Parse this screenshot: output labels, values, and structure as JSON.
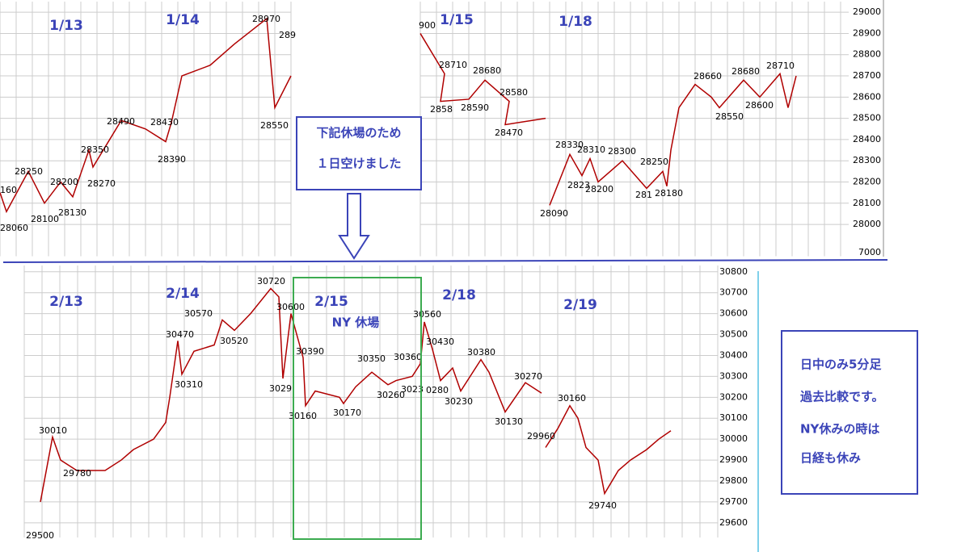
{
  "chart_data": [
    {
      "type": "line",
      "color": "#b00000",
      "date_labels": [
        "1/13",
        "1/14",
        "1/15",
        "1/18"
      ],
      "ylim": [
        27850,
        29050
      ],
      "yticks": [
        28000,
        28100,
        28200,
        28300,
        28400,
        28500,
        28600,
        28700,
        28800,
        28900,
        29000
      ],
      "grid": true,
      "series": [
        {
          "values": [
            28150,
            28060,
            28250,
            28100,
            28200,
            28130,
            28350,
            28270,
            28490,
            28450,
            28390,
            28480,
            28700,
            28750,
            28850,
            28970,
            28550,
            28700,
            null,
            28900,
            28710,
            28580,
            28590,
            28680,
            28580,
            28470,
            28500,
            null,
            28090,
            28330,
            28230,
            28310,
            28200,
            28300,
            28170,
            28250,
            28180,
            28350,
            28550,
            28660,
            28600,
            28550,
            28680,
            28600,
            28710,
            28550,
            28700
          ]
        }
      ],
      "annotations": [
        "160",
        28060,
        28250,
        28100,
        28200,
        28130,
        28350,
        28270,
        28490,
        28430,
        28390,
        28970,
        "289",
        28550,
        "900",
        28710,
        "2858",
        28590,
        28680,
        28580,
        28470,
        28330,
        28310,
        28300,
        "2823",
        28200,
        "281",
        28180,
        28250,
        28090,
        28660,
        28680,
        28710,
        28550,
        28600,
        "7000"
      ]
    },
    {
      "type": "line",
      "color": "#b00000",
      "date_labels": [
        "2/13",
        "2/14",
        "2/15",
        "2/18",
        "2/19"
      ],
      "closed_label": "NY 休場",
      "ylim": [
        29530,
        30830
      ],
      "yticks": [
        29600,
        29700,
        29800,
        29900,
        30000,
        30100,
        30200,
        30300,
        30400,
        30500,
        30600,
        30700,
        30800
      ],
      "grid": true,
      "series": [
        {
          "values": [
            29700,
            30010,
            29900,
            29850,
            29850,
            29900,
            29950,
            30000,
            30080,
            30200,
            30470,
            30310,
            30420,
            30450,
            30570,
            30520,
            30600,
            30720,
            30680,
            30290,
            30600,
            30390,
            30160,
            30230,
            30200,
            30170,
            30250,
            30320,
            30260,
            30280,
            30300,
            30360,
            30560,
            30430,
            30280,
            30340,
            30230,
            30380,
            30320,
            30130,
            30270,
            30220,
            null,
            29960,
            30050,
            30160,
            30100,
            29960,
            29900,
            29740,
            29850,
            29900,
            29950,
            30000,
            30040
          ]
        }
      ],
      "annotations": [
        30010,
        29780,
        30470,
        30310,
        30570,
        30520,
        30720,
        30600,
        "3029",
        30390,
        30160,
        30170,
        30350,
        30260,
        30360,
        "3023",
        30560,
        30430,
        "0280",
        30230,
        30380,
        30130,
        30270,
        30160,
        29960,
        29740,
        29500
      ]
    }
  ],
  "notes": {
    "top_box": [
      "下記休場のため",
      "１日空けました"
    ],
    "side_box": [
      "日中のみ5分足",
      "過去比較です。",
      "NY休みの時は",
      "日経も休み"
    ]
  }
}
